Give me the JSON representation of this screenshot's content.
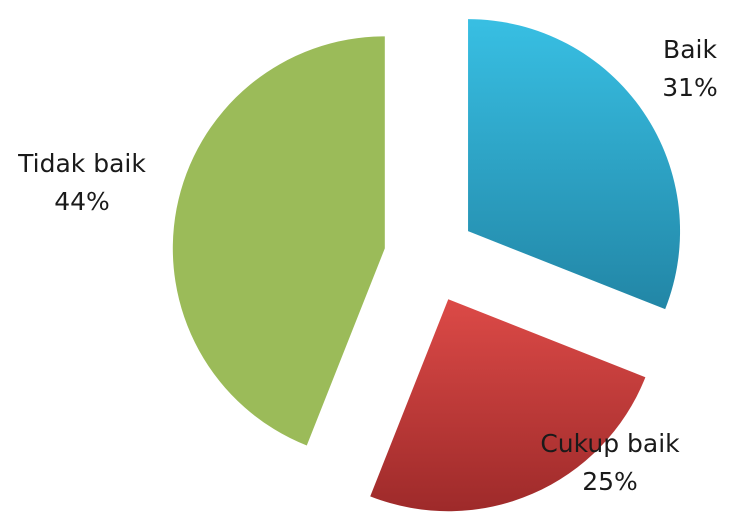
{
  "chart_data": {
    "type": "pie",
    "exploded": true,
    "slices": [
      {
        "label": "Baik",
        "value": 31,
        "value_label": "31%",
        "color": "#2aa6c8"
      },
      {
        "label": "Cukup baik",
        "value": 25,
        "value_label": "25%",
        "color": "#c43b3b"
      },
      {
        "label": "Tidak baik",
        "value": 44,
        "value_label": "44%",
        "color": "#9bbb59"
      }
    ]
  }
}
